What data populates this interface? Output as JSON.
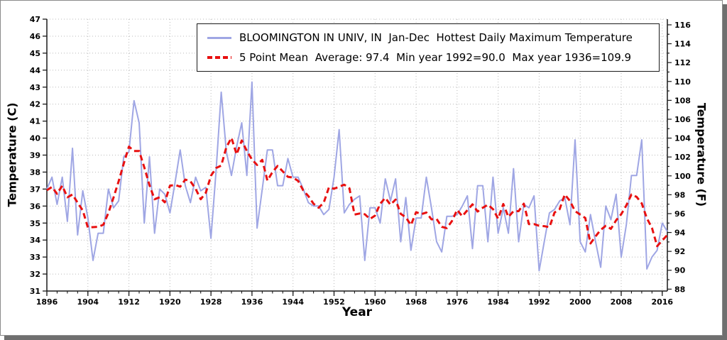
{
  "chart_data": {
    "type": "line",
    "xlabel": "Year",
    "ylabel_left": "Temperature (C)",
    "ylabel_right": "Temperature (F)",
    "x_range": [
      1896,
      2017
    ],
    "ylim_c": [
      31,
      47
    ],
    "ylim_f": [
      88,
      116
    ],
    "x_ticks_major": [
      1896,
      1904,
      1912,
      1920,
      1928,
      1936,
      1944,
      1952,
      1960,
      1968,
      1976,
      1984,
      1992,
      2000,
      2008,
      2016
    ],
    "x_minor_step": 2,
    "y_ticks_c": [
      31,
      32,
      33,
      34,
      35,
      36,
      37,
      38,
      39,
      40,
      41,
      42,
      43,
      44,
      45,
      46,
      47
    ],
    "y_ticks_f": [
      88,
      90,
      92,
      94,
      96,
      98,
      100,
      102,
      104,
      106,
      108,
      110,
      112,
      114,
      116
    ],
    "grid": true,
    "legend_position": "top-center",
    "legend": [
      {
        "label": "BLOOMINGTON IN UNIV, IN  Jan-Dec  Hottest Daily Maximum Temperature",
        "color": "#9fa6e4",
        "style": "solid"
      },
      {
        "label": "5 Point Mean  Average: 97.4  Min year 1992=90.0  Max year 1936=109.9",
        "color": "#e81010",
        "style": "dashed"
      }
    ],
    "stats": {
      "average_f": 97.4,
      "min_year": 1992,
      "min_f": 90.0,
      "max_year": 1936,
      "max_f": 109.9
    },
    "series": [
      {
        "name": "annual_hottest_daily_max",
        "x_start": 1896,
        "values_c": [
          37.0,
          37.7,
          36.1,
          37.7,
          35.1,
          39.4,
          34.3,
          36.9,
          35.3,
          32.8,
          34.4,
          34.4,
          37.0,
          35.9,
          36.3,
          38.9,
          39.2,
          42.2,
          40.9,
          35.0,
          38.9,
          34.4,
          37.0,
          36.7,
          35.6,
          37.4,
          39.3,
          37.2,
          36.2,
          37.7,
          36.9,
          37.1,
          34.1,
          38.1,
          42.7,
          39.2,
          37.8,
          39.5,
          40.9,
          37.8,
          43.3,
          34.7,
          37.0,
          39.3,
          39.3,
          37.2,
          37.2,
          38.8,
          37.7,
          37.7,
          37.0,
          36.2,
          36.0,
          36.0,
          35.5,
          35.8,
          37.7,
          40.5,
          35.6,
          36.1,
          36.4,
          36.6,
          32.8,
          35.9,
          35.9,
          35.0,
          37.6,
          36.3,
          37.6,
          33.9,
          36.5,
          33.4,
          35.3,
          35.3,
          37.7,
          35.9,
          33.9,
          33.3,
          35.4,
          35.4,
          35.5,
          36.0,
          36.6,
          33.5,
          37.2,
          37.2,
          33.9,
          37.7,
          34.4,
          35.9,
          34.4,
          38.2,
          33.9,
          36.1,
          35.9,
          36.6,
          32.2,
          33.9,
          35.6,
          35.8,
          36.3,
          36.5,
          34.9,
          39.9,
          33.9,
          33.3,
          35.5,
          33.9,
          32.4,
          36.0,
          35.2,
          36.7,
          33.0,
          34.9,
          37.8,
          37.8,
          39.9,
          32.3,
          33.0,
          33.4,
          35.0,
          34.5
        ]
      },
      {
        "name": "5_point_mean",
        "derived": "centered_mean_window_5"
      }
    ],
    "colors": {
      "annual": "#9fa6e4",
      "mean": "#e81010",
      "grid": "#b9b9b9",
      "axis": "#1a1a1a"
    }
  }
}
